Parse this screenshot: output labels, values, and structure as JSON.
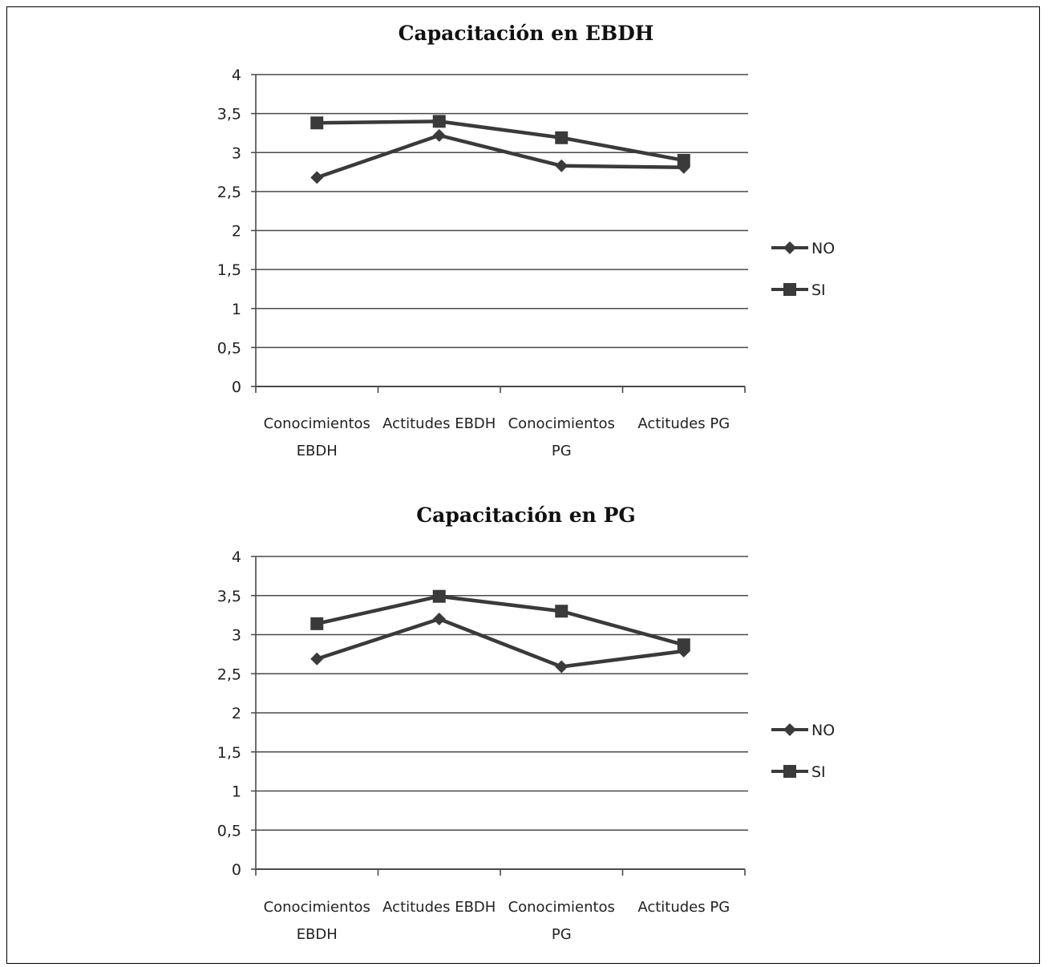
{
  "chart_data": [
    {
      "type": "line",
      "title": "Capacitación en EBDH",
      "categories": [
        [
          "Conocimientos",
          "EBDH"
        ],
        [
          "Actitudes EBDH"
        ],
        [
          "Conocimientos",
          "PG"
        ],
        [
          "Actitudes PG"
        ]
      ],
      "y_ticks": [
        "0",
        "0,5",
        "1",
        "1,5",
        "2",
        "2,5",
        "3",
        "3,5",
        "4"
      ],
      "ylim": [
        0,
        4
      ],
      "grid": true,
      "legend_position": "right",
      "series": [
        {
          "name": "NO",
          "marker": "diamond",
          "values": [
            2.68,
            3.22,
            2.83,
            2.81
          ]
        },
        {
          "name": "SI",
          "marker": "square",
          "values": [
            3.38,
            3.4,
            3.19,
            2.9
          ]
        }
      ]
    },
    {
      "type": "line",
      "title": "Capacitación en PG",
      "categories": [
        [
          "Conocimientos",
          "EBDH"
        ],
        [
          "Actitudes EBDH"
        ],
        [
          "Conocimientos",
          "PG"
        ],
        [
          "Actitudes PG"
        ]
      ],
      "y_ticks": [
        "0",
        "0,5",
        "1",
        "1,5",
        "2",
        "2,5",
        "3",
        "3,5",
        "4"
      ],
      "ylim": [
        0,
        4
      ],
      "grid": true,
      "legend_position": "right",
      "series": [
        {
          "name": "NO",
          "marker": "diamond",
          "values": [
            2.69,
            3.2,
            2.59,
            2.79
          ]
        },
        {
          "name": "SI",
          "marker": "square",
          "values": [
            3.14,
            3.49,
            3.3,
            2.87
          ]
        }
      ]
    }
  ],
  "colors": {
    "line": "#3a3a3a",
    "grid": "#4a4a4a",
    "text": "#222222"
  }
}
